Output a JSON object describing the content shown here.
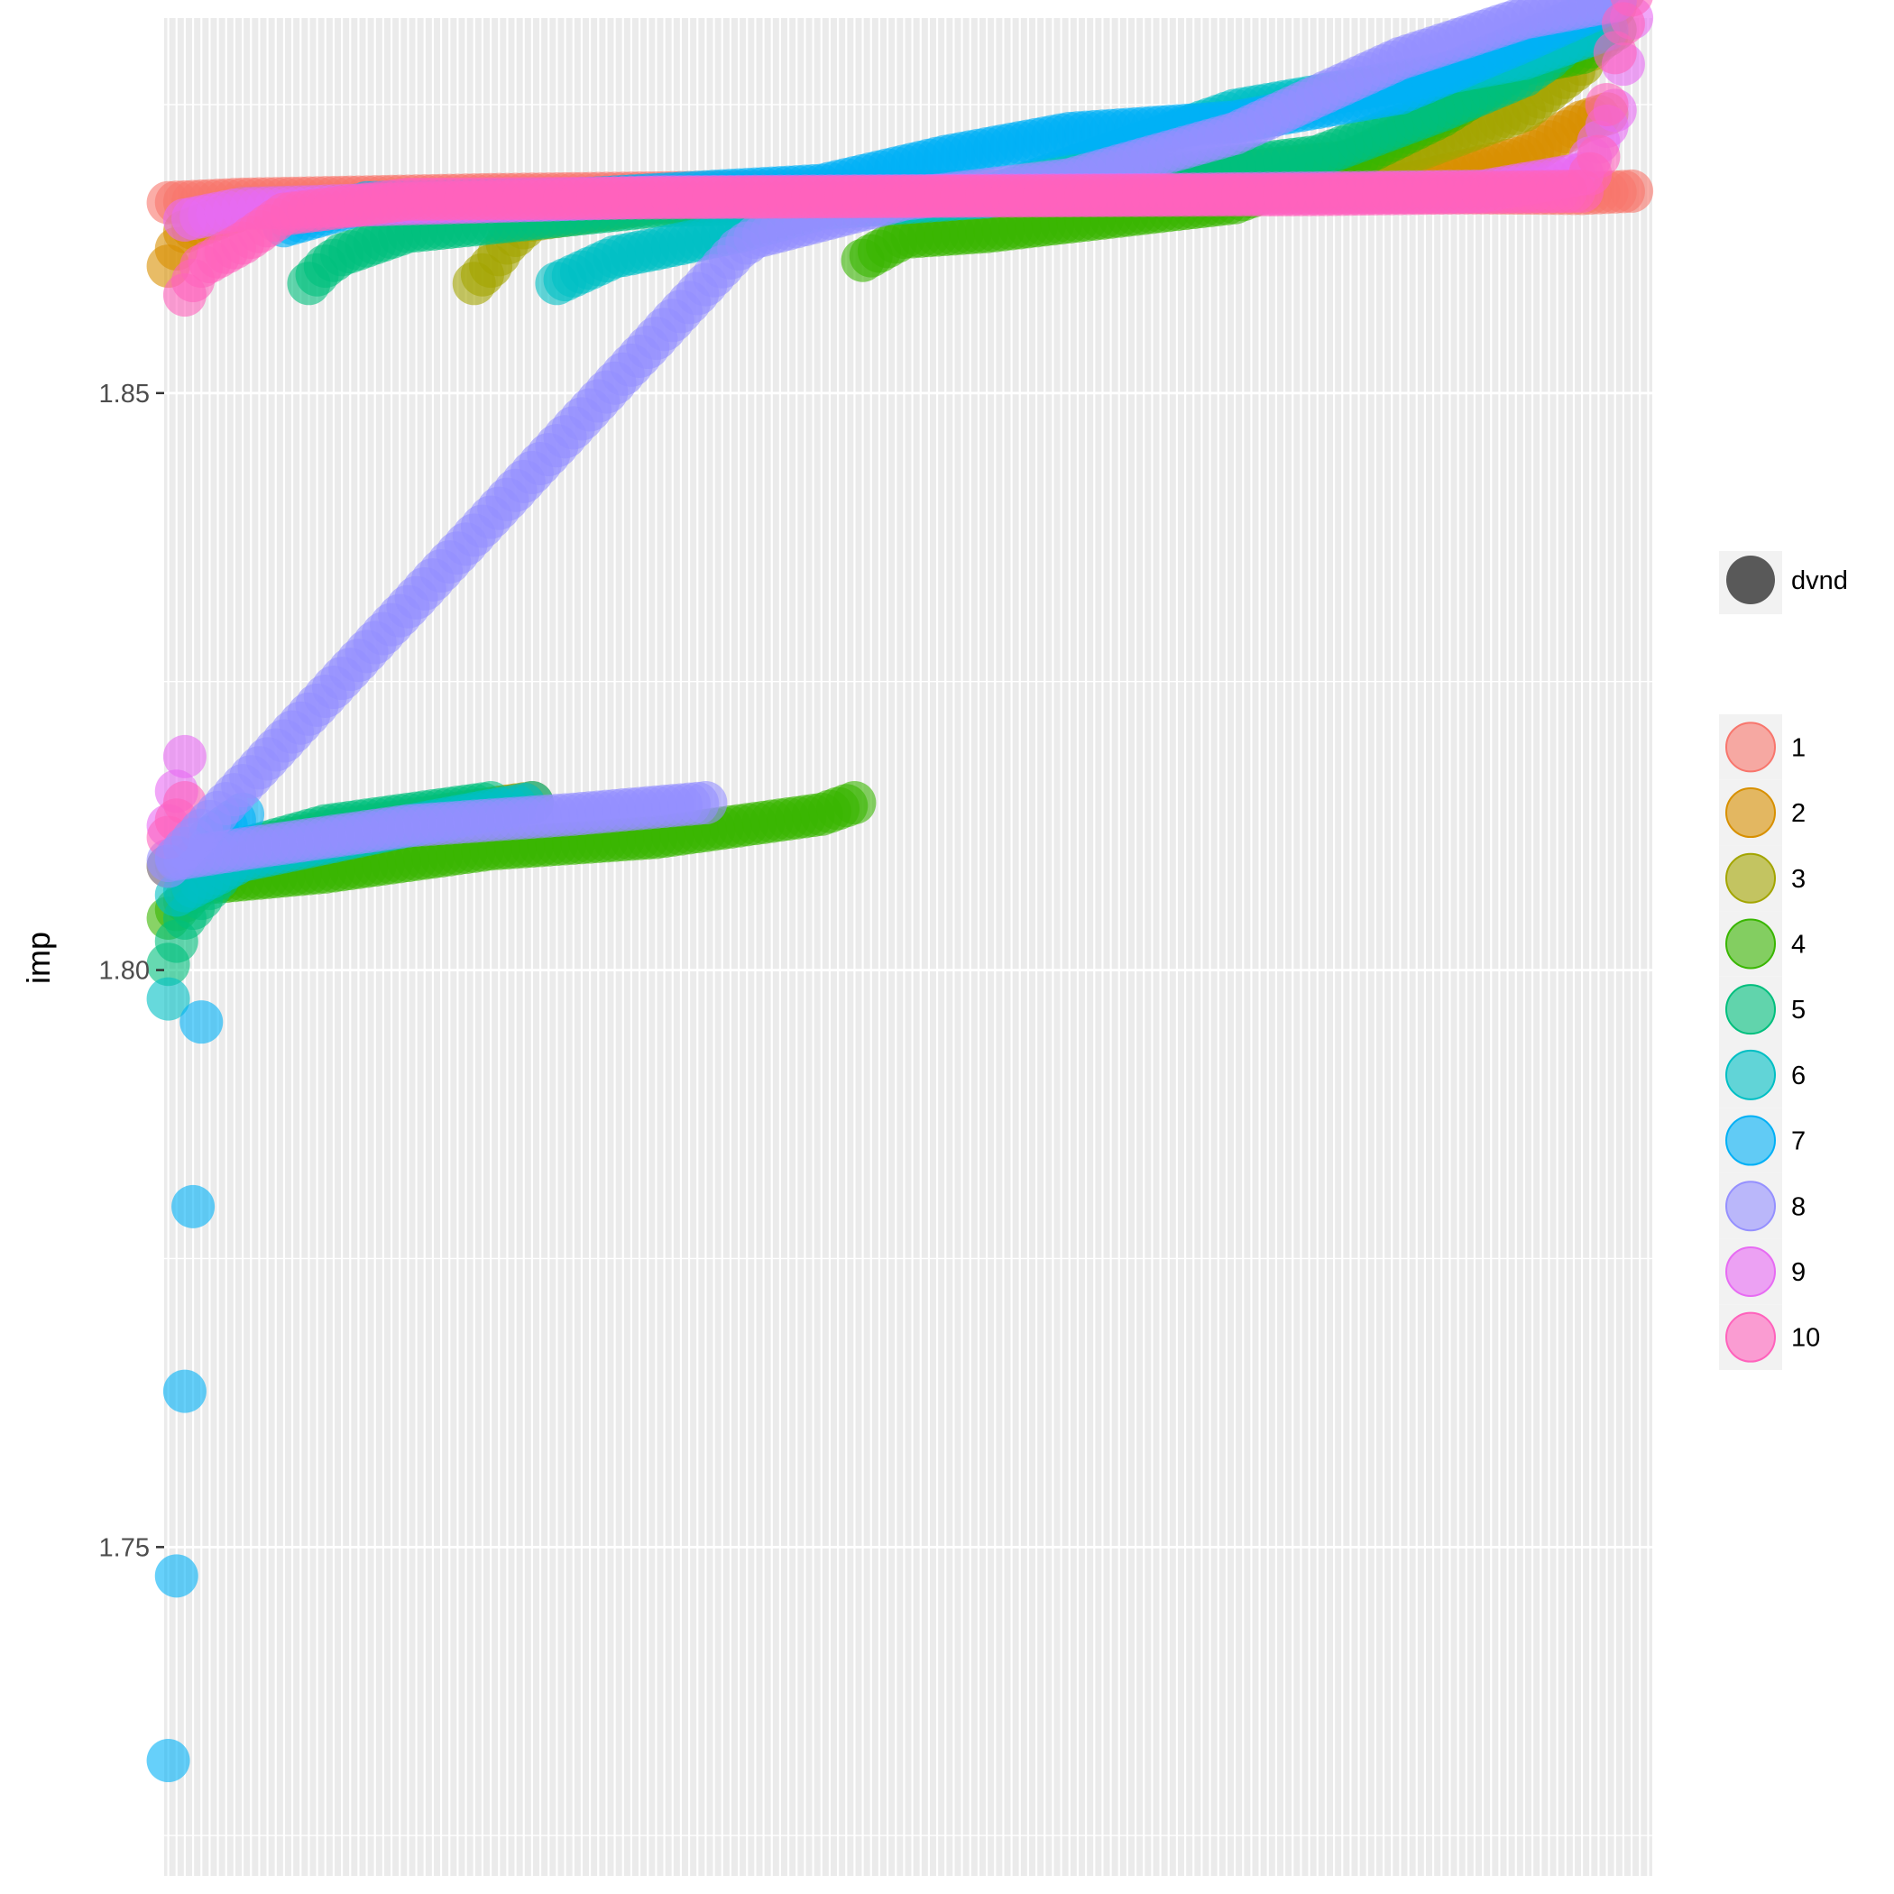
{
  "chart_data": {
    "type": "scatter",
    "xlabel": "",
    "ylabel": "imp",
    "ylim": [
      1.7215,
      1.8825
    ],
    "yticks": [
      1.75,
      1.8,
      1.85
    ],
    "ytick_labels": [
      "1.75",
      "1.80",
      "1.85"
    ],
    "grid": true,
    "x_count": 180,
    "point_alpha": 0.6,
    "size_legend": {
      "label": "dvnd",
      "color": "#595959"
    },
    "legend_position": "right",
    "series": [
      {
        "name": "1",
        "color": "#F8766D",
        "points": [
          [
            1,
            1.8665
          ],
          [
            10,
            1.8668
          ],
          [
            40,
            1.8672
          ],
          [
            80,
            1.8675
          ],
          [
            120,
            1.8675
          ],
          [
            150,
            1.8674
          ],
          [
            172,
            1.8673
          ],
          [
            178,
            1.8675
          ]
        ]
      },
      {
        "name": "2",
        "color": "#D89000",
        "points": [
          [
            1,
            1.861
          ],
          [
            3,
            1.864
          ],
          [
            10,
            1.866
          ],
          [
            40,
            1.8665
          ],
          [
            80,
            1.8668
          ],
          [
            120,
            1.8675
          ],
          [
            150,
            1.868
          ],
          [
            165,
            1.8705
          ],
          [
            172,
            1.8735
          ],
          [
            175,
            1.8742
          ]
        ],
        "lower": [
          [
            1,
            1.809
          ],
          [
            20,
            1.8115
          ],
          [
            35,
            1.8135
          ],
          [
            45,
            1.8145
          ]
        ]
      },
      {
        "name": "3",
        "color": "#A3A500",
        "points": [
          [
            38,
            1.8595
          ],
          [
            40,
            1.861
          ],
          [
            42,
            1.863
          ],
          [
            45,
            1.865
          ],
          [
            60,
            1.8665
          ],
          [
            100,
            1.867
          ],
          [
            150,
            1.8705
          ],
          [
            165,
            1.8745
          ],
          [
            172,
            1.8785
          ],
          [
            176,
            1.8835
          ],
          [
            178,
            1.886
          ]
        ],
        "lower": [
          [
            1,
            1.809
          ],
          [
            20,
            1.812
          ],
          [
            35,
            1.8135
          ],
          [
            45,
            1.8145
          ]
        ]
      },
      {
        "name": "4",
        "color": "#39B600",
        "points": [
          [
            85,
            1.8615
          ],
          [
            90,
            1.8635
          ],
          [
            100,
            1.864
          ],
          [
            130,
            1.8665
          ],
          [
            145,
            1.8705
          ],
          [
            155,
            1.874
          ],
          [
            165,
            1.8785
          ],
          [
            172,
            1.8795
          ],
          [
            176,
            1.8815
          ]
        ],
        "lower": [
          [
            1,
            1.8045
          ],
          [
            5,
            1.8075
          ],
          [
            20,
            1.8085
          ],
          [
            40,
            1.8105
          ],
          [
            60,
            1.8115
          ],
          [
            80,
            1.8135
          ],
          [
            84,
            1.8145
          ]
        ]
      },
      {
        "name": "5",
        "color": "#00BF7D",
        "points": [
          [
            18,
            1.8595
          ],
          [
            20,
            1.861
          ],
          [
            22,
            1.862
          ],
          [
            30,
            1.864
          ],
          [
            60,
            1.8662
          ],
          [
            100,
            1.867
          ],
          [
            140,
            1.8705
          ],
          [
            155,
            1.8745
          ],
          [
            165,
            1.8775
          ],
          [
            168,
            1.879
          ],
          [
            172,
            1.8815
          ]
        ],
        "lower": [
          [
            1,
            1.8005
          ],
          [
            3,
            1.8045
          ],
          [
            10,
            1.8105
          ],
          [
            20,
            1.8125
          ],
          [
            40,
            1.8145
          ]
        ]
      },
      {
        "name": "6",
        "color": "#00BFC4",
        "points": [
          [
            48,
            1.8595
          ],
          [
            55,
            1.8618
          ],
          [
            60,
            1.8625
          ],
          [
            70,
            1.864
          ],
          [
            80,
            1.866
          ],
          [
            100,
            1.867
          ],
          [
            130,
            1.8745
          ],
          [
            150,
            1.877
          ],
          [
            165,
            1.879
          ],
          [
            175,
            1.8815
          ]
        ],
        "lower": [
          [
            1,
            1.7975
          ],
          [
            2,
            1.8065
          ],
          [
            10,
            1.8095
          ],
          [
            30,
            1.8125
          ],
          [
            45,
            1.8145
          ]
        ]
      },
      {
        "name": "7",
        "color": "#00B0F6",
        "points": [
          [
            15,
            1.8645
          ],
          [
            25,
            1.8665
          ],
          [
            50,
            1.8668
          ],
          [
            80,
            1.868
          ],
          [
            95,
            1.8705
          ],
          [
            110,
            1.8725
          ],
          [
            130,
            1.8735
          ],
          [
            150,
            1.876
          ],
          [
            165,
            1.8805
          ],
          [
            176,
            1.884
          ]
        ],
        "lower": [
          [
            1,
            1.7315
          ],
          [
            6,
            1.8115
          ],
          [
            10,
            1.8135
          ]
        ]
      },
      {
        "name": "8",
        "color": "#9590FF",
        "points": [
          [
            1,
            1.809
          ],
          [
            70,
            1.8625
          ],
          [
            72,
            1.8635
          ],
          [
            90,
            1.8668
          ],
          [
            110,
            1.8685
          ],
          [
            130,
            1.8725
          ],
          [
            150,
            1.879
          ],
          [
            165,
            1.8825
          ],
          [
            176,
            1.884
          ]
        ],
        "lower": [
          [
            1,
            1.8095
          ],
          [
            10,
            1.8105
          ],
          [
            30,
            1.8125
          ],
          [
            50,
            1.8135
          ],
          [
            66,
            1.8145
          ]
        ]
      },
      {
        "name": "9",
        "color": "#E76BF3",
        "points": [
          [
            3,
            1.865
          ],
          [
            10,
            1.866
          ],
          [
            60,
            1.867
          ],
          [
            120,
            1.8672
          ],
          [
            160,
            1.8675
          ],
          [
            172,
            1.869
          ],
          [
            176,
            1.8745
          ],
          [
            178,
            1.8825
          ]
        ],
        "lower": [
          [
            3,
            1.8185
          ],
          [
            1,
            1.8125
          ]
        ]
      },
      {
        "name": "10",
        "color": "#FF62BC",
        "points": [
          [
            3,
            1.8585
          ],
          [
            5,
            1.861
          ],
          [
            10,
            1.863
          ],
          [
            15,
            1.8655
          ],
          [
            30,
            1.8668
          ],
          [
            80,
            1.867
          ],
          [
            140,
            1.8672
          ],
          [
            172,
            1.8675
          ],
          [
            174,
            1.8705
          ],
          [
            176,
            1.8795
          ],
          [
            178,
            1.8845
          ]
        ],
        "lower": [
          [
            1,
            1.8115
          ],
          [
            3,
            1.8145
          ]
        ]
      }
    ]
  }
}
